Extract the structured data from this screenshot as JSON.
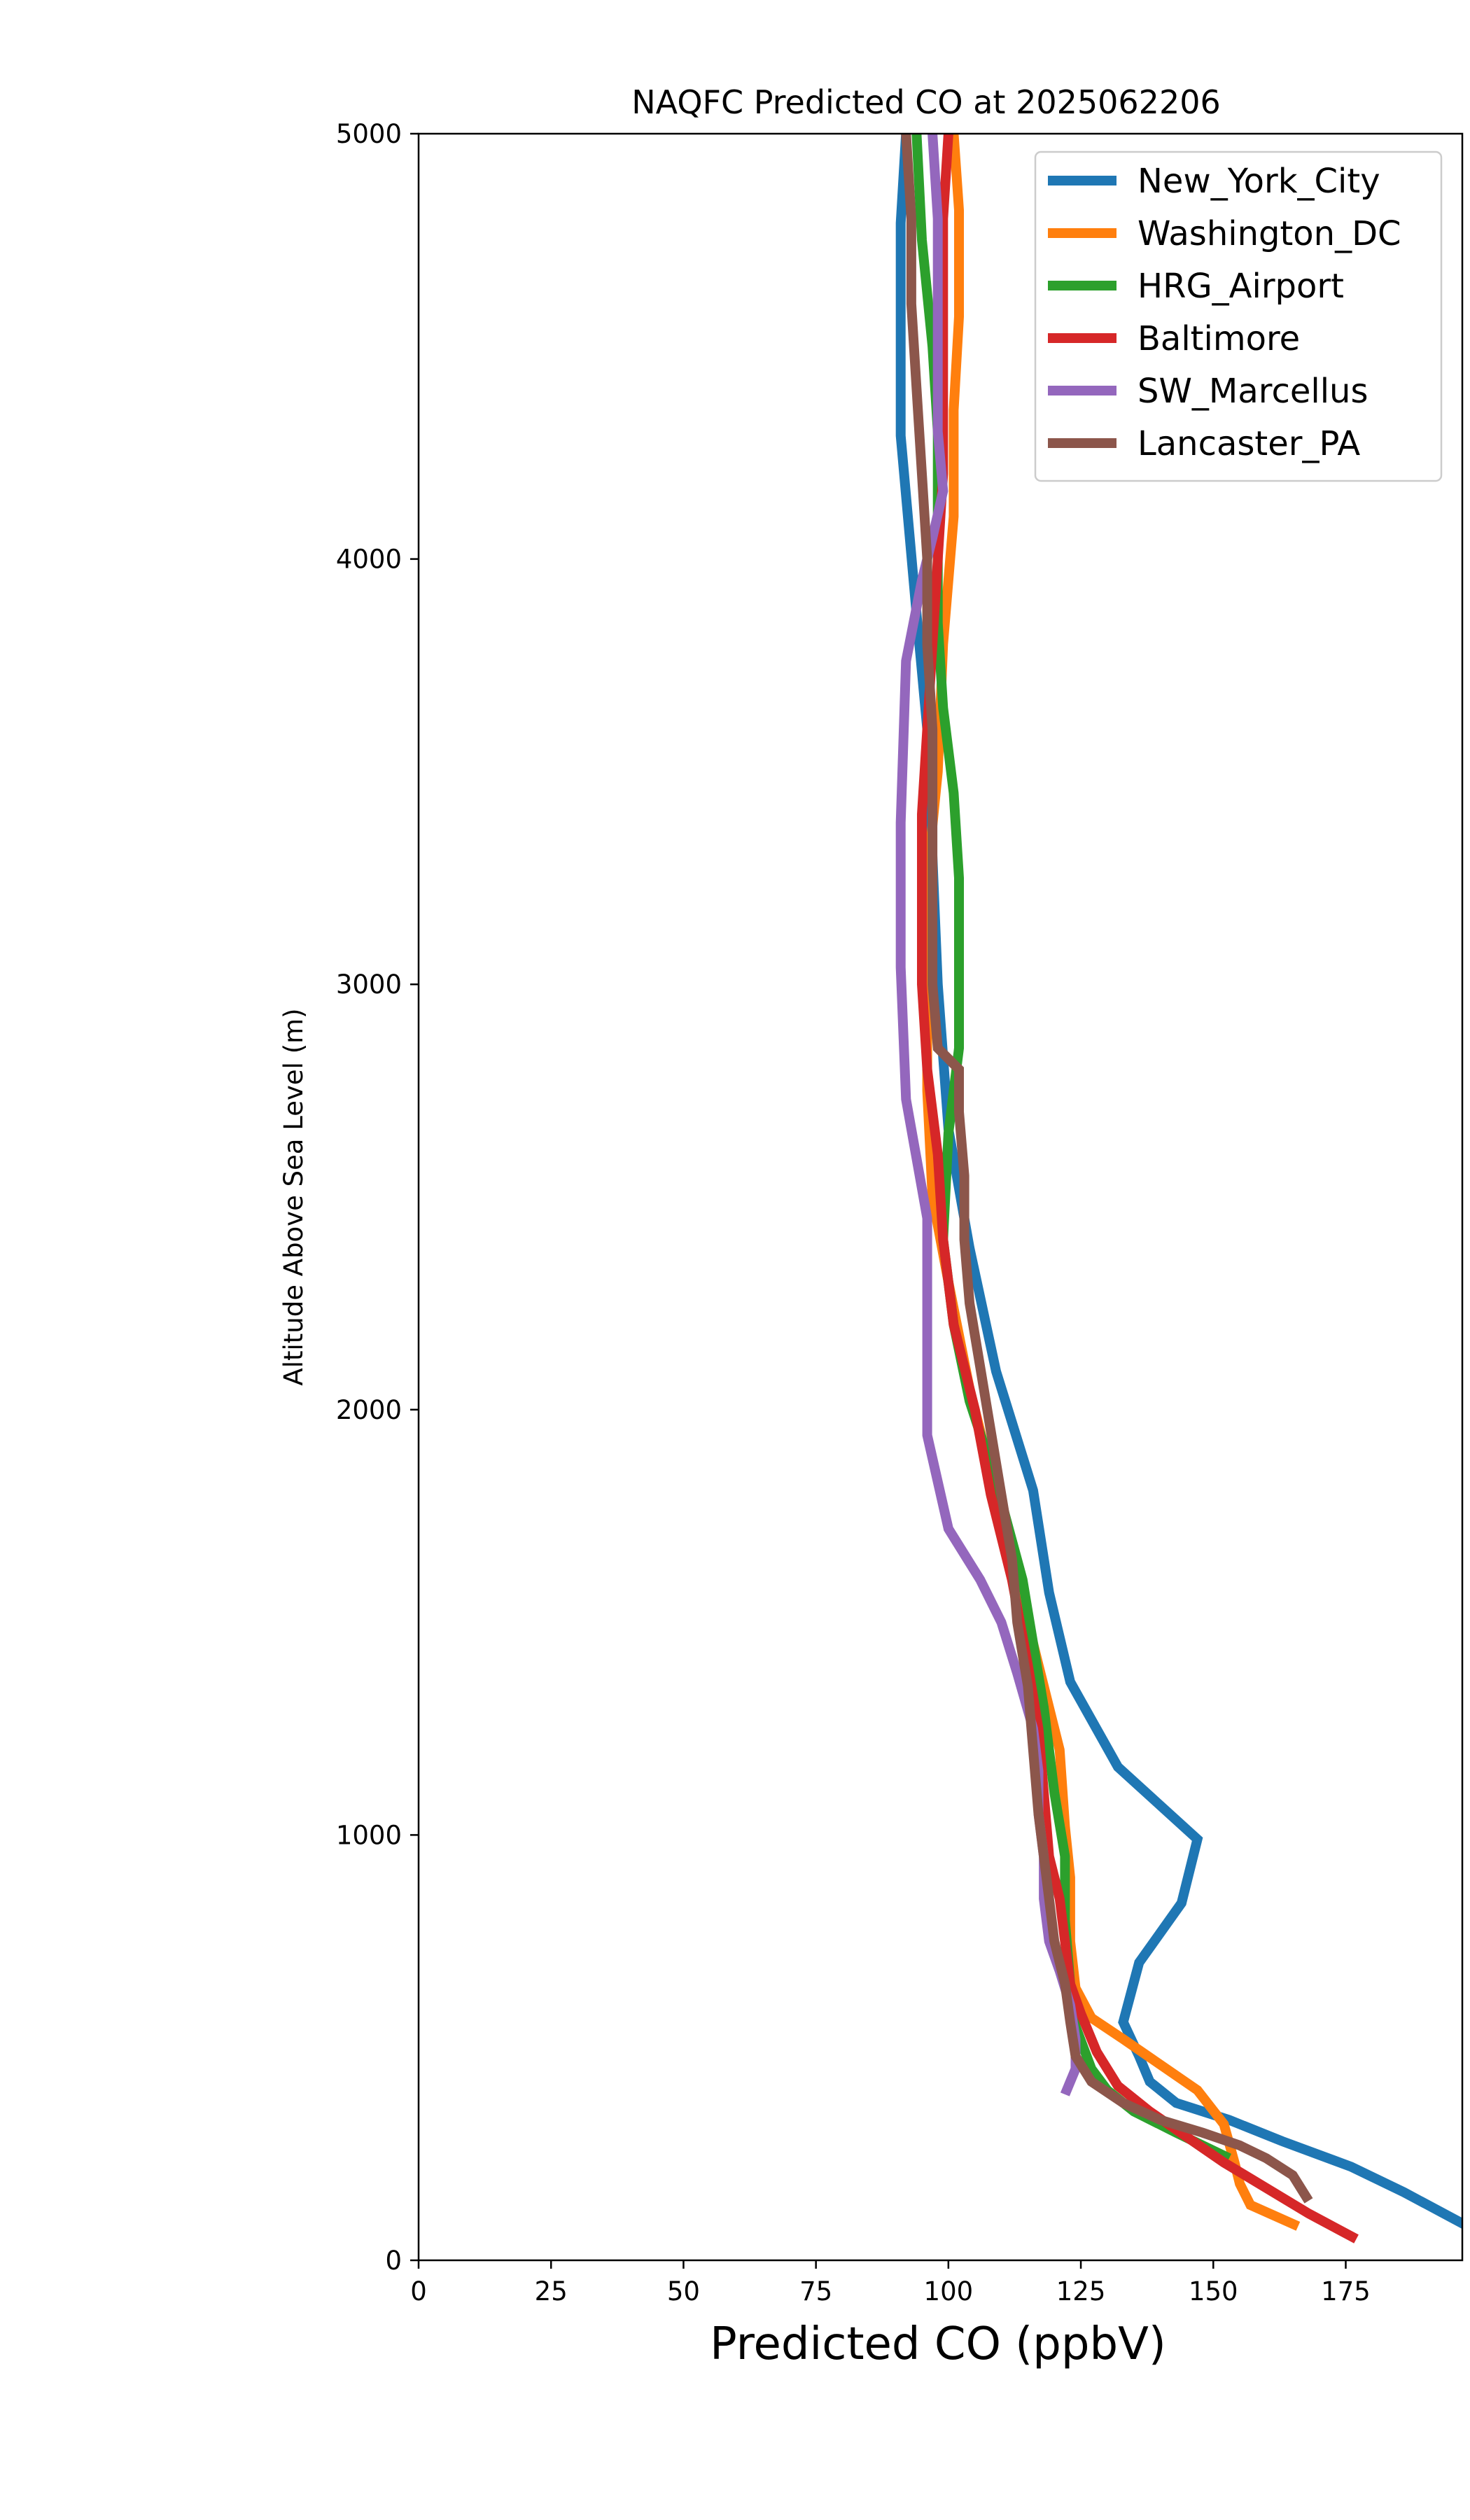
{
  "chart_data": {
    "type": "line",
    "title": "NAQFC Predicted CO at 2025062206",
    "xlabel": "Predicted CO (ppbV)",
    "ylabel": "Altitude Above Sea Level (m)",
    "xlim": [
      0,
      197
    ],
    "ylim": [
      0,
      5000
    ],
    "xticks": [
      0,
      25,
      50,
      75,
      100,
      125,
      150,
      175
    ],
    "yticks": [
      0,
      1000,
      2000,
      3000,
      4000,
      5000
    ],
    "grid": false,
    "legend_position": "top-right",
    "series": [
      {
        "name": "New_York_City",
        "color": "#1f77b4",
        "points": [
          [
            198,
            80
          ],
          [
            186,
            160
          ],
          [
            176,
            220
          ],
          [
            163,
            280
          ],
          [
            153,
            330
          ],
          [
            143,
            370
          ],
          [
            138,
            420
          ],
          [
            136,
            480
          ],
          [
            133,
            560
          ],
          [
            136,
            700
          ],
          [
            144,
            840
          ],
          [
            147,
            990
          ],
          [
            132,
            1160
          ],
          [
            123,
            1360
          ],
          [
            119,
            1570
          ],
          [
            116,
            1810
          ],
          [
            109,
            2090
          ],
          [
            104,
            2380
          ],
          [
            100,
            2660
          ],
          [
            98,
            3000
          ],
          [
            97,
            3300
          ],
          [
            96,
            3600
          ],
          [
            94,
            3870
          ],
          [
            91,
            4290
          ],
          [
            91,
            4790
          ],
          [
            92,
            5000
          ]
        ]
      },
      {
        "name": "Washington_DC",
        "color": "#ff7f0e",
        "points": [
          [
            166,
            80
          ],
          [
            157,
            130
          ],
          [
            155,
            180
          ],
          [
            154,
            230
          ],
          [
            152,
            320
          ],
          [
            147,
            400
          ],
          [
            140,
            460
          ],
          [
            133,
            520
          ],
          [
            127,
            570
          ],
          [
            124,
            640
          ],
          [
            123,
            750
          ],
          [
            123,
            900
          ],
          [
            122,
            1020
          ],
          [
            121,
            1200
          ],
          [
            118,
            1350
          ],
          [
            114,
            1550
          ],
          [
            109,
            1800
          ],
          [
            104,
            2050
          ],
          [
            100,
            2300
          ],
          [
            97,
            2500
          ],
          [
            96,
            2750
          ],
          [
            96,
            3000
          ],
          [
            96,
            3250
          ],
          [
            98,
            3500
          ],
          [
            99,
            3800
          ],
          [
            101,
            4100
          ],
          [
            101,
            4350
          ],
          [
            102,
            4570
          ],
          [
            102,
            4820
          ],
          [
            101,
            5000
          ]
        ]
      },
      {
        "name": "HRG_Airport",
        "color": "#2ca02c",
        "points": [
          [
            153,
            240
          ],
          [
            148,
            270
          ],
          [
            143,
            300
          ],
          [
            135,
            350
          ],
          [
            130,
            400
          ],
          [
            127,
            450
          ],
          [
            124,
            550
          ],
          [
            123,
            650
          ],
          [
            122,
            800
          ],
          [
            122,
            950
          ],
          [
            120,
            1100
          ],
          [
            118,
            1300
          ],
          [
            114,
            1600
          ],
          [
            109,
            1830
          ],
          [
            104,
            2020
          ],
          [
            101,
            2200
          ],
          [
            99,
            2400
          ],
          [
            100,
            2650
          ],
          [
            102,
            2850
          ],
          [
            102,
            3050
          ],
          [
            102,
            3250
          ],
          [
            101,
            3450
          ],
          [
            99,
            3650
          ],
          [
            98,
            3850
          ],
          [
            98,
            4050
          ],
          [
            98,
            4300
          ],
          [
            97,
            4500
          ],
          [
            95,
            4750
          ],
          [
            94,
            5000
          ]
        ]
      },
      {
        "name": "Baltimore",
        "color": "#d62728",
        "points": [
          [
            177,
            50
          ],
          [
            168,
            110
          ],
          [
            160,
            170
          ],
          [
            152,
            230
          ],
          [
            145,
            290
          ],
          [
            138,
            350
          ],
          [
            132,
            410
          ],
          [
            128,
            490
          ],
          [
            125,
            580
          ],
          [
            123,
            650
          ],
          [
            122,
            750
          ],
          [
            121,
            850
          ],
          [
            119,
            950
          ],
          [
            118,
            1100
          ],
          [
            117,
            1250
          ],
          [
            115,
            1400
          ],
          [
            112,
            1600
          ],
          [
            108,
            1800
          ],
          [
            105,
            2000
          ],
          [
            101,
            2200
          ],
          [
            99,
            2400
          ],
          [
            98,
            2600
          ],
          [
            96,
            2800
          ],
          [
            95,
            3000
          ],
          [
            95,
            3200
          ],
          [
            95,
            3400
          ],
          [
            96,
            3600
          ],
          [
            97,
            3800
          ],
          [
            98,
            4000
          ],
          [
            99,
            4200
          ],
          [
            99,
            4400
          ],
          [
            99,
            4600
          ],
          [
            99,
            4800
          ],
          [
            100,
            5000
          ]
        ]
      },
      {
        "name": "SW_Marcellus",
        "color": "#9467bd",
        "points": [
          [
            122,
            390
          ],
          [
            124,
            450
          ],
          [
            124,
            520
          ],
          [
            123,
            600
          ],
          [
            121,
            680
          ],
          [
            119,
            750
          ],
          [
            118,
            850
          ],
          [
            118,
            950
          ],
          [
            117,
            1050
          ],
          [
            117,
            1150
          ],
          [
            116,
            1250
          ],
          [
            113,
            1380
          ],
          [
            110,
            1500
          ],
          [
            106,
            1600
          ],
          [
            100,
            1720
          ],
          [
            96,
            1940
          ],
          [
            96,
            2250
          ],
          [
            96,
            2450
          ],
          [
            92,
            2730
          ],
          [
            91,
            3040
          ],
          [
            91,
            3380
          ],
          [
            92,
            3760
          ],
          [
            95,
            3950
          ],
          [
            97,
            4050
          ],
          [
            99,
            4160
          ],
          [
            98,
            4300
          ],
          [
            98,
            4550
          ],
          [
            98,
            4800
          ],
          [
            97,
            5000
          ]
        ]
      },
      {
        "name": "Lancaster_PA",
        "color": "#8c564b",
        "points": [
          [
            168,
            140
          ],
          [
            165,
            200
          ],
          [
            160,
            240
          ],
          [
            155,
            270
          ],
          [
            148,
            300
          ],
          [
            140,
            330
          ],
          [
            133,
            370
          ],
          [
            127,
            420
          ],
          [
            124,
            480
          ],
          [
            123,
            560
          ],
          [
            122,
            650
          ],
          [
            120,
            750
          ],
          [
            119,
            850
          ],
          [
            118,
            950
          ],
          [
            117,
            1050
          ],
          [
            116,
            1200
          ],
          [
            115,
            1350
          ],
          [
            113,
            1500
          ],
          [
            112,
            1650
          ],
          [
            110,
            1800
          ],
          [
            108,
            1950
          ],
          [
            106,
            2100
          ],
          [
            104,
            2250
          ],
          [
            103,
            2400
          ],
          [
            103,
            2550
          ],
          [
            102,
            2700
          ],
          [
            102,
            2800
          ],
          [
            98,
            2850
          ],
          [
            97,
            3000
          ],
          [
            97,
            3200
          ],
          [
            97,
            3400
          ],
          [
            97,
            3600
          ],
          [
            96,
            3800
          ],
          [
            96,
            4000
          ],
          [
            95,
            4200
          ],
          [
            94,
            4400
          ],
          [
            93,
            4600
          ],
          [
            93,
            4800
          ],
          [
            92,
            5000
          ]
        ]
      }
    ]
  }
}
